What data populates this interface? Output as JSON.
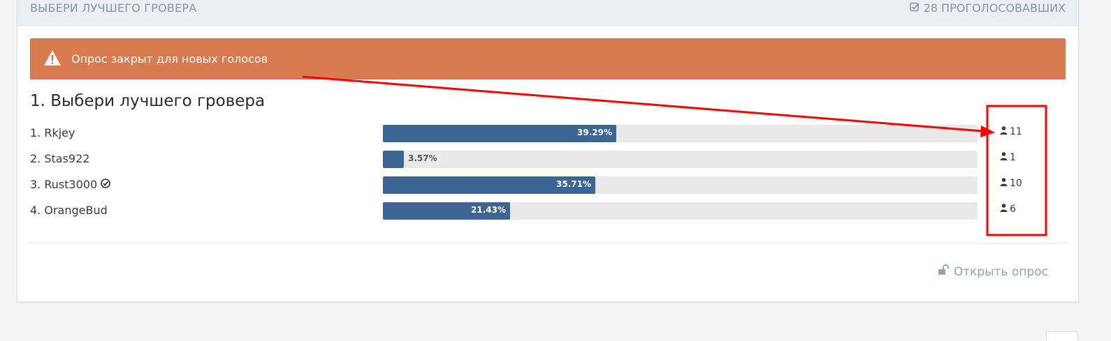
{
  "header": {
    "title": "ВЫБЕРИ ЛУЧШЕГО ГРОВЕРА",
    "voters": "28 ПРОГОЛОСОВАВШИХ"
  },
  "alert": {
    "text": "Опрос закрыт для новых голосов",
    "color": "#d97b4e"
  },
  "question": {
    "title": "1. Выбери лучшего гровера",
    "choices": [
      {
        "label": "1. Rkjey",
        "percent": 39.29,
        "percent_text": "39.29%",
        "votes": "11",
        "verified": false
      },
      {
        "label": "2. Stas922",
        "percent": 3.57,
        "percent_text": "3.57%",
        "votes": "1",
        "verified": false
      },
      {
        "label": "3. Rust3000",
        "percent": 35.71,
        "percent_text": "35.71%",
        "votes": "10",
        "verified": true
      },
      {
        "label": "4. OrangeBud",
        "percent": 21.43,
        "percent_text": "21.43%",
        "votes": "6",
        "verified": false
      }
    ]
  },
  "footer": {
    "open_poll_label": "Открыть опрос"
  },
  "colors": {
    "bar_fill": "#3c6594",
    "annotation": "#ff0000"
  },
  "icons": {
    "voters": "check-square-icon",
    "alert": "warning-triangle-icon",
    "voter": "user-icon",
    "verified": "check-circle-icon",
    "open_poll": "unlock-icon"
  }
}
